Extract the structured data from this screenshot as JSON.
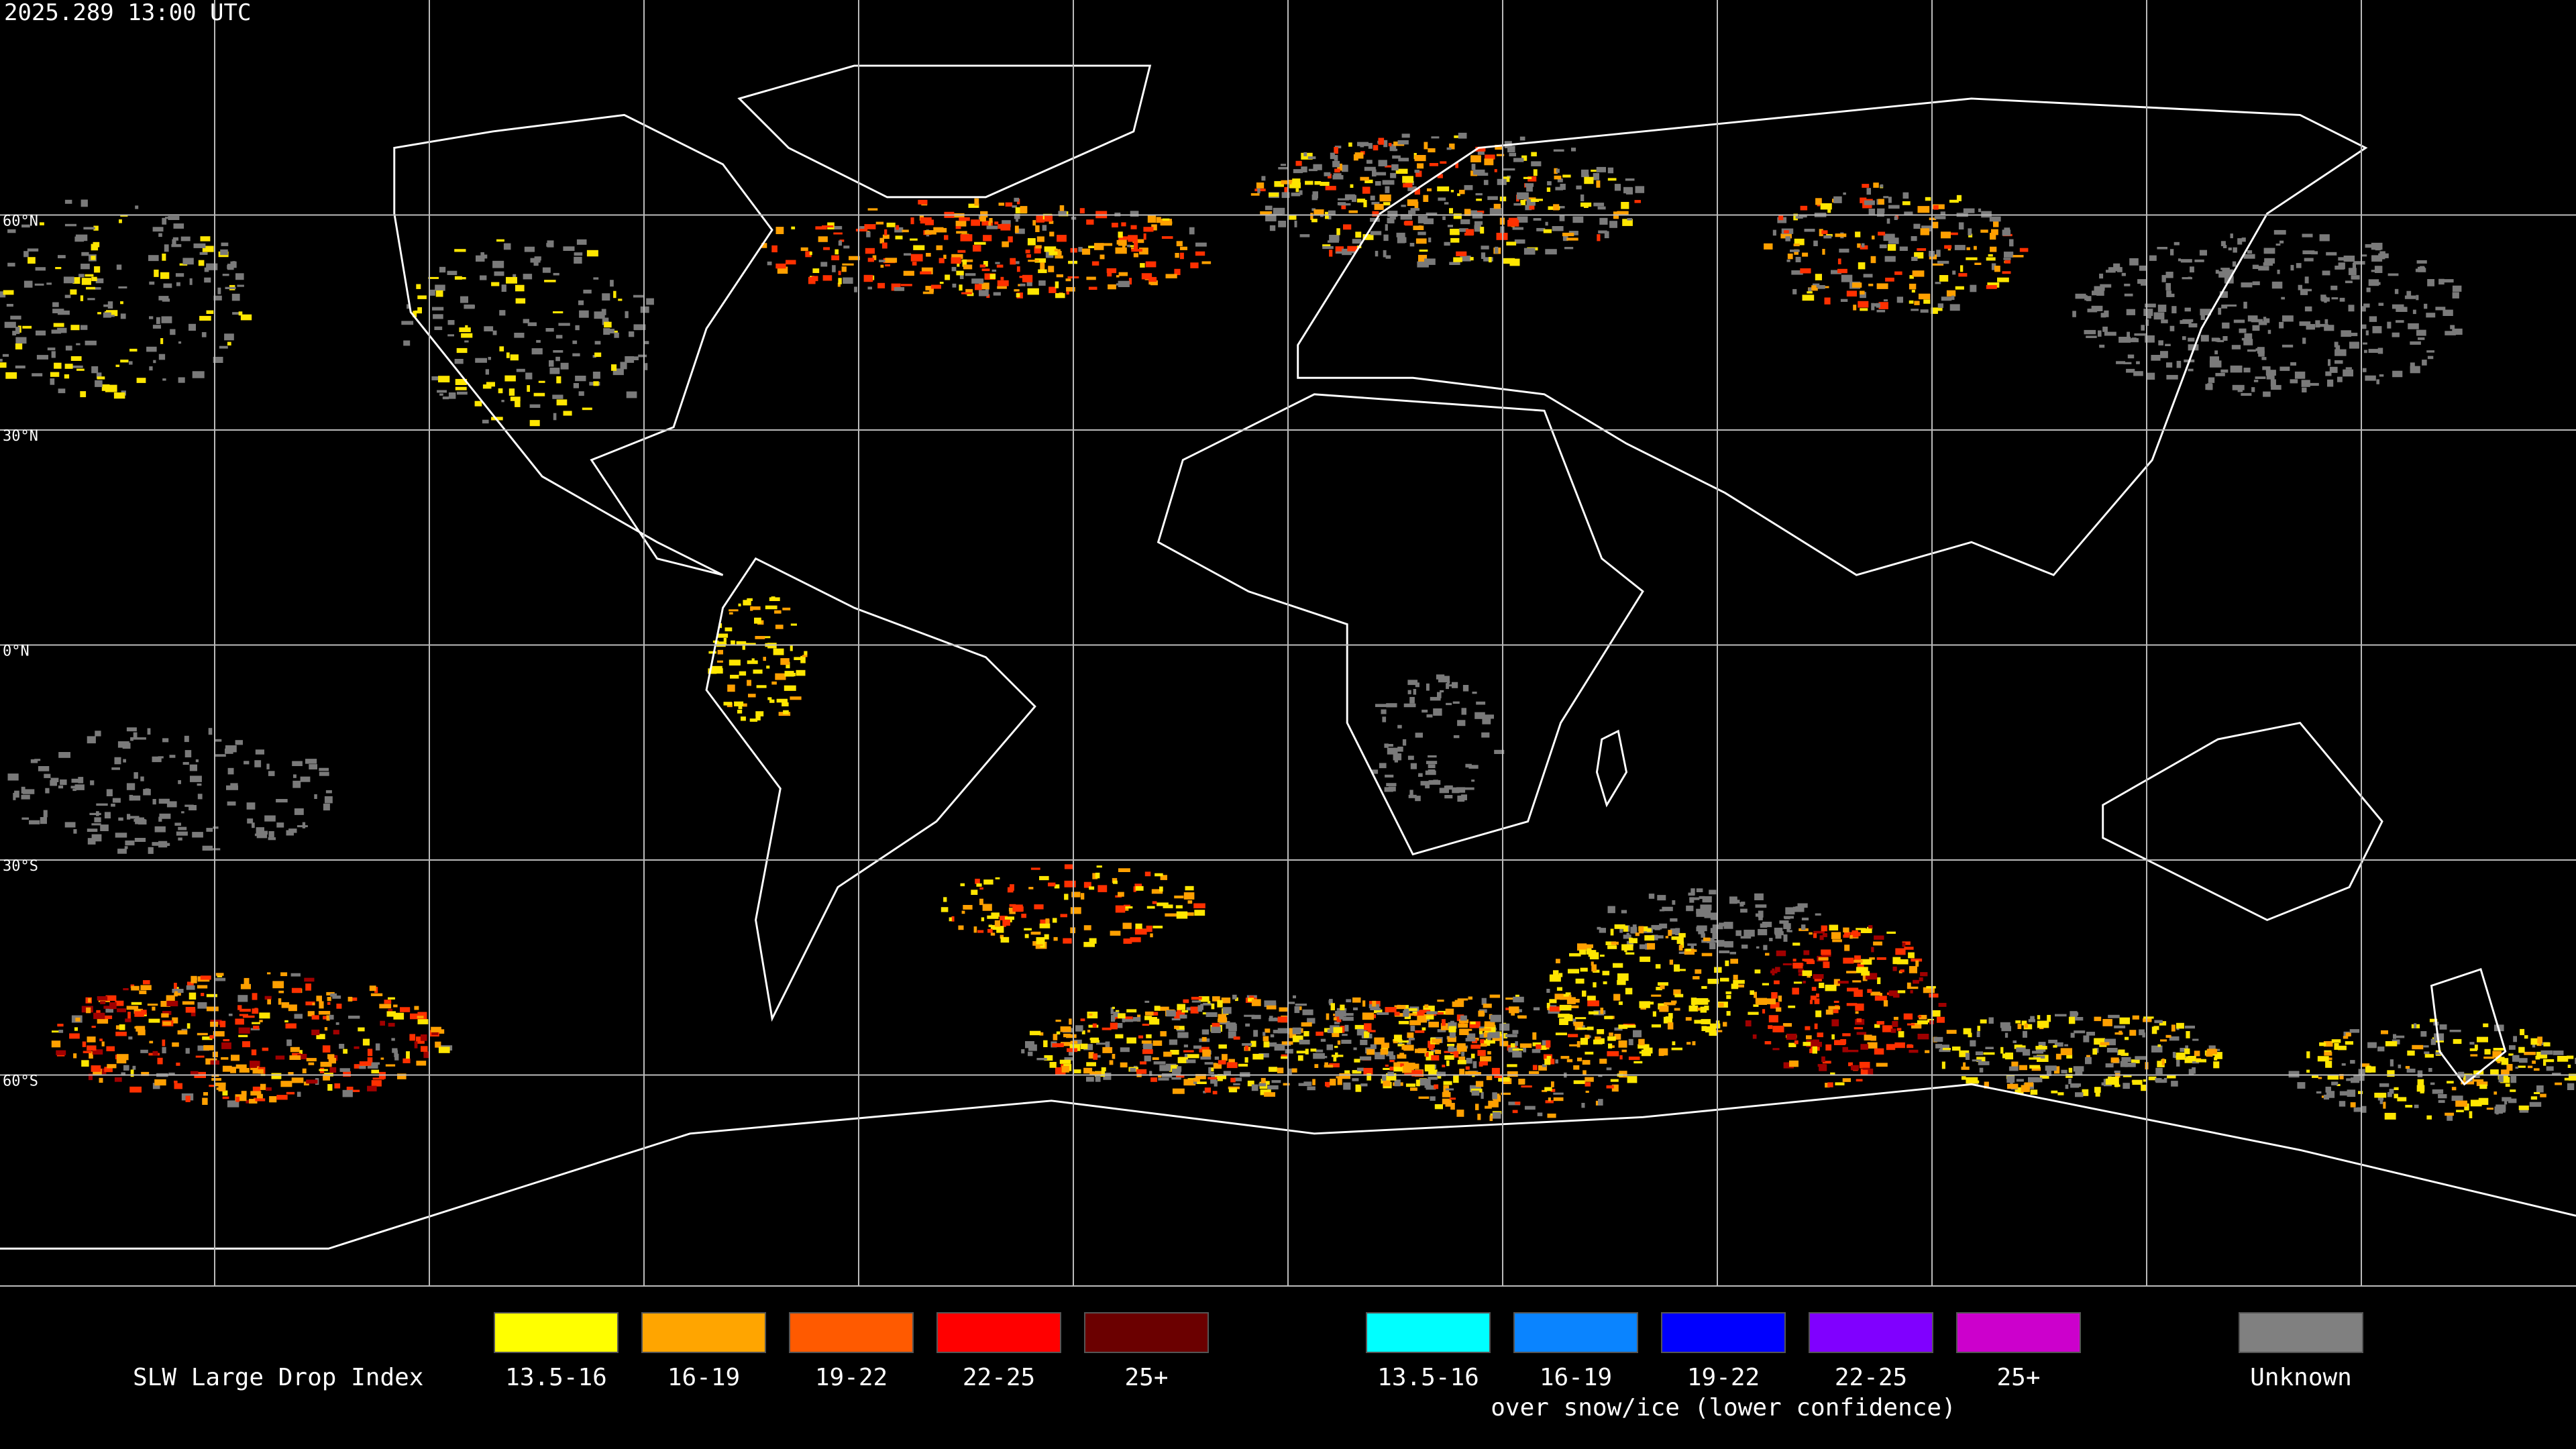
{
  "timestamp": "2025.289 13:00 UTC",
  "latitude_labels": [
    "60°N",
    "30°N",
    "0°N",
    "30°S",
    "60°S"
  ],
  "legend": {
    "title": "SLW Large Drop Index",
    "groups": [
      {
        "items": [
          {
            "label": "13.5-16",
            "color": "#ffff00"
          },
          {
            "label": "16-19",
            "color": "#ffa500"
          },
          {
            "label": "19-22",
            "color": "#ff5a00"
          },
          {
            "label": "22-25",
            "color": "#ff0000"
          },
          {
            "label": "25+",
            "color": "#6b0000"
          }
        ]
      },
      {
        "items": [
          {
            "label": "13.5-16",
            "color": "#00ffff"
          },
          {
            "label": "16-19",
            "color": "#0a84ff"
          },
          {
            "label": "19-22",
            "color": "#0000ff"
          },
          {
            "label": "22-25",
            "color": "#8000ff"
          },
          {
            "label": "25+",
            "color": "#cc00cc"
          }
        ],
        "caption": "over snow/ice (lower confidence)"
      },
      {
        "items": [
          {
            "label": "Unknown",
            "color": "#808080"
          }
        ]
      }
    ]
  }
}
